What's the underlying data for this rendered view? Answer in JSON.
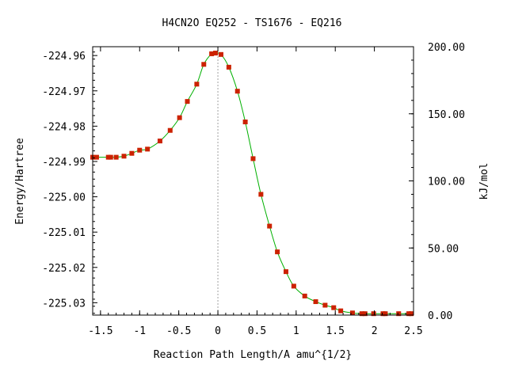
{
  "chart_data": {
    "type": "line",
    "title": "H4CN2O   EQ252 - TS1676 - EQ216",
    "xlabel": "Reaction Path Length/A amu^{1/2}",
    "ylabel": "Energy/Hartree",
    "y2label": "kJ/mol",
    "xlim": [
      -1.6,
      2.5
    ],
    "ylim": [
      -225.0335,
      -224.9575
    ],
    "y2lim": [
      0,
      200
    ],
    "x_ticks": [
      -1.5,
      -1,
      -0.5,
      0,
      0.5,
      1,
      1.5,
      2,
      2.5
    ],
    "x_tick_labels": [
      "-1.5",
      "-1",
      "-0.5",
      "0",
      "0.5",
      "1",
      "1.5",
      "2",
      "2.5"
    ],
    "y_ticks": [
      -224.96,
      -224.97,
      -224.98,
      -224.99,
      -225.0,
      -225.01,
      -225.02,
      -225.03
    ],
    "y_tick_labels": [
      "-224.96",
      "-224.97",
      "-224.98",
      "-224.99",
      "-225.00",
      "-225.01",
      "-225.02",
      "-225.03"
    ],
    "y2_ticks": [
      200,
      150,
      100,
      50,
      0
    ],
    "y2_tick_labels": [
      "200.00",
      "150.00",
      "100.00",
      "50.00",
      "0.00"
    ],
    "ts_marker_x": 0,
    "grid": false,
    "colors": {
      "curve": "#00b000",
      "points": "#cc2200",
      "points_inner": "#a05000",
      "ts_line": "#a0a0a0"
    },
    "series": [
      {
        "x": [
          -1.6,
          -1.55,
          -1.4,
          -1.37,
          -1.3,
          -1.2,
          -1.1,
          -1.0,
          -0.9,
          -0.74,
          -0.61,
          -0.49,
          -0.39,
          -0.27,
          -0.18,
          -0.08,
          -0.03,
          0.04,
          0.14,
          0.25,
          0.35,
          0.45,
          0.55,
          0.66,
          0.76,
          0.87,
          0.97,
          1.11,
          1.25,
          1.37,
          1.48,
          1.57,
          1.72,
          1.84,
          1.88,
          1.99,
          2.11,
          2.14,
          2.31,
          2.44,
          2.47
        ],
        "y": [
          -224.9888,
          -224.9888,
          -224.9888,
          -224.9888,
          -224.9888,
          -224.9885,
          -224.9877,
          -224.9868,
          -224.9865,
          -224.9842,
          -224.9812,
          -224.9776,
          -224.973,
          -224.9681,
          -224.9625,
          -224.9595,
          -224.9593,
          -224.9597,
          -224.9633,
          -224.9701,
          -224.9788,
          -224.9892,
          -224.9993,
          -225.0083,
          -225.0156,
          -225.0212,
          -225.0253,
          -225.0281,
          -225.0297,
          -225.0307,
          -225.0314,
          -225.0323,
          -225.0329,
          -225.0331,
          -225.0331,
          -225.0331,
          -225.0331,
          -225.0331,
          -225.0331,
          -225.0331,
          -225.0331
        ]
      }
    ]
  }
}
